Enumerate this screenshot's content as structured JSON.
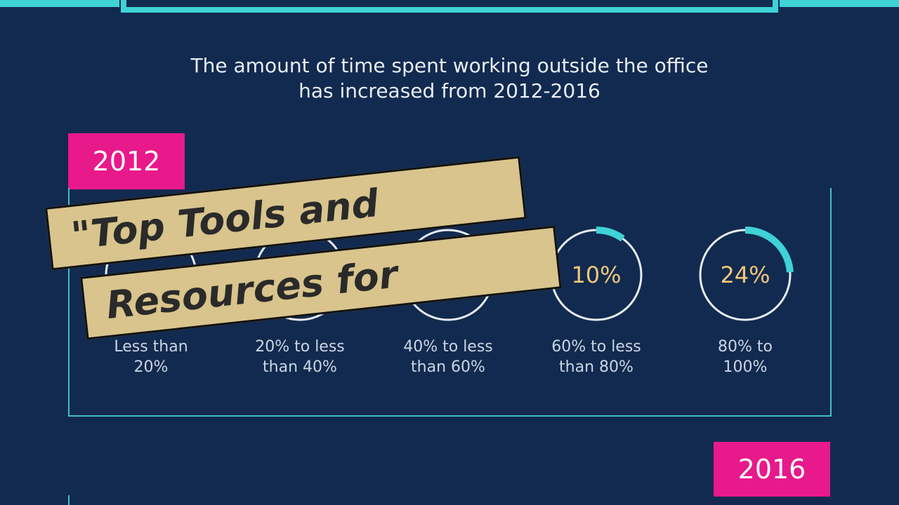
{
  "headline": {
    "line1": "The amount of time spent working outside the office",
    "line2": "has increased from 2012-2016"
  },
  "years": {
    "first": "2012",
    "second": "2016"
  },
  "gauges_2012": [
    {
      "label_line1": "Less than",
      "label_line2": "20%",
      "value": "",
      "fraction": 0
    },
    {
      "label_line1": "20% to less",
      "label_line2": "than 40%",
      "value": "",
      "fraction": 0
    },
    {
      "label_line1": "40% to less",
      "label_line2": "than 60%",
      "value": "",
      "fraction": 0
    },
    {
      "label_line1": "60% to less",
      "label_line2": "than 80%",
      "value": "10%",
      "fraction": 0.1
    },
    {
      "label_line1": "80% to",
      "label_line2": "100%",
      "value": "24%",
      "fraction": 0.24
    }
  ],
  "banner": {
    "line1": "\"Top Tools and",
    "line2": "Resources for"
  },
  "colors": {
    "background": "#122a4f",
    "accent_teal": "#3fd2d6",
    "year_badge": "#e8198b",
    "gauge_value": "#f3c77a",
    "banner_fill": "#d8c48c"
  }
}
